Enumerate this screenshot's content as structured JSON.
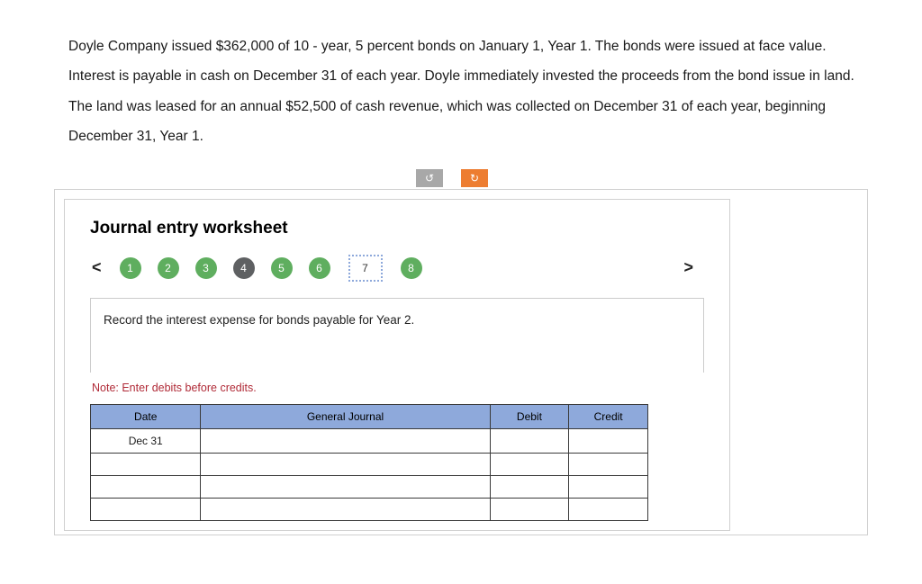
{
  "problem": {
    "text": "Doyle Company issued $362,000 of 10 - year, 5 percent bonds on January 1, Year 1. The bonds were issued at face value. Interest is payable in cash on December 31 of each year. Doyle immediately invested the proceeds from the bond issue in land. The land was leased for an annual $52,500 of cash revenue, which was collected on December 31 of each year, beginning December 31, Year 1."
  },
  "controls": {
    "undo_glyph": "↺",
    "redo_glyph": "↻",
    "undo_color": "#a8a8a8",
    "redo_color": "#ed7d31"
  },
  "worksheet": {
    "title": "Journal entry worksheet",
    "nav_prev": "<",
    "nav_next": ">",
    "steps": [
      {
        "label": "1",
        "kind": "green"
      },
      {
        "label": "2",
        "kind": "green"
      },
      {
        "label": "3",
        "kind": "green"
      },
      {
        "label": "4",
        "kind": "dark"
      },
      {
        "label": "5",
        "kind": "green"
      },
      {
        "label": "6",
        "kind": "green"
      },
      {
        "label": "7",
        "kind": "active"
      },
      {
        "label": "8",
        "kind": "green"
      }
    ],
    "active_step_index": 6,
    "instruction": "Record the interest expense for bonds payable for Year 2.",
    "note": "Note: Enter debits before credits.",
    "table": {
      "columns": [
        "Date",
        "General Journal",
        "Debit",
        "Credit"
      ],
      "rows": [
        [
          "Dec 31",
          "",
          "",
          ""
        ],
        [
          "",
          "",
          "",
          ""
        ],
        [
          "",
          "",
          "",
          ""
        ],
        [
          "",
          "",
          "",
          ""
        ]
      ],
      "header_bg": "#8ea9db",
      "border_color": "#3a3a3a"
    },
    "colors": {
      "step_green": "#5fae5f",
      "step_dark": "#5e6062",
      "note_red": "#b02a37"
    }
  }
}
